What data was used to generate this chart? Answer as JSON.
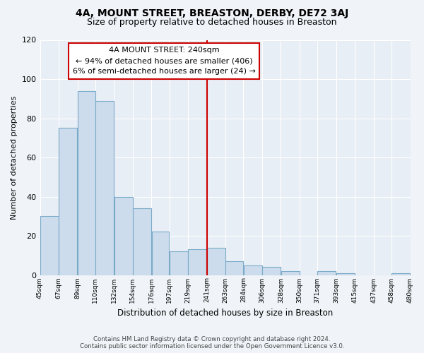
{
  "title": "4A, MOUNT STREET, BREASTON, DERBY, DE72 3AJ",
  "subtitle": "Size of property relative to detached houses in Breaston",
  "xlabel": "Distribution of detached houses by size in Breaston",
  "ylabel": "Number of detached properties",
  "bar_color": "#ccdcec",
  "bar_edge_color": "#7aaac8",
  "bins": [
    45,
    67,
    89,
    110,
    132,
    154,
    176,
    197,
    219,
    241,
    263,
    284,
    306,
    328,
    350,
    371,
    393,
    415,
    437,
    458,
    480
  ],
  "values": [
    30,
    75,
    94,
    89,
    40,
    34,
    22,
    12,
    13,
    14,
    7,
    5,
    4,
    2,
    0,
    2,
    1,
    0,
    0,
    1
  ],
  "tick_labels": [
    "45sqm",
    "67sqm",
    "89sqm",
    "110sqm",
    "132sqm",
    "154sqm",
    "176sqm",
    "197sqm",
    "219sqm",
    "241sqm",
    "263sqm",
    "284sqm",
    "306sqm",
    "328sqm",
    "350sqm",
    "371sqm",
    "393sqm",
    "415sqm",
    "437sqm",
    "458sqm",
    "480sqm"
  ],
  "property_line_x": 241,
  "property_line_color": "#cc0000",
  "annotation_title": "4A MOUNT STREET: 240sqm",
  "annotation_line1": "← 94% of detached houses are smaller (406)",
  "annotation_line2": "6% of semi-detached houses are larger (24) →",
  "annotation_box_color": "#ffffff",
  "annotation_box_edge": "#cc0000",
  "ylim": [
    0,
    120
  ],
  "yticks": [
    0,
    20,
    40,
    60,
    80,
    100,
    120
  ],
  "plot_bg_color": "#e8eef5",
  "fig_bg_color": "#f0f4f8",
  "grid_color": "#ffffff",
  "title_fontsize": 10,
  "subtitle_fontsize": 9,
  "footer_line1": "Contains HM Land Registry data © Crown copyright and database right 2024.",
  "footer_line2": "Contains public sector information licensed under the Open Government Licence v3.0."
}
